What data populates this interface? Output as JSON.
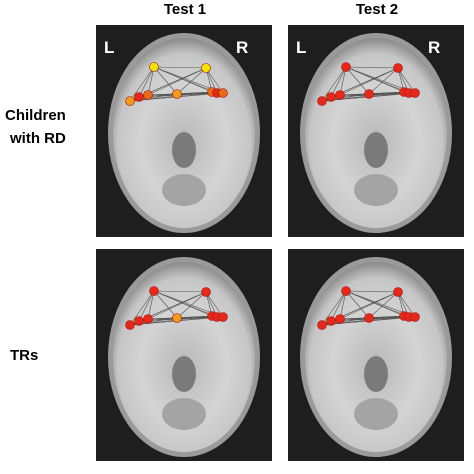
{
  "columns": [
    "Test 1",
    "Test 2"
  ],
  "rows": [
    {
      "label_lines": [
        "Children",
        "with RD"
      ]
    },
    {
      "label_lines": [
        "TRs"
      ]
    }
  ],
  "panels": [
    {
      "left": "L",
      "right": "R"
    },
    {
      "left": "L",
      "right": "R"
    }
  ]
}
